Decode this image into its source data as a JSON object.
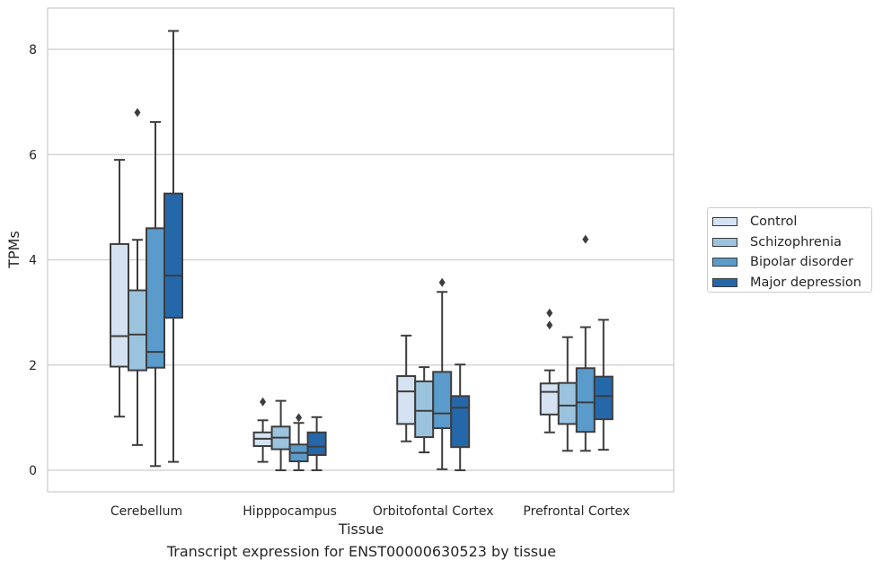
{
  "chart_data": {
    "type": "box",
    "title": "",
    "caption": "Transcript expression for ENST00000630523 by tissue",
    "xlabel": "Tissue",
    "ylabel": "TPMs",
    "ylim": [
      -0.4,
      8.8
    ],
    "yticks": [
      0,
      2,
      4,
      6,
      8
    ],
    "grid": true,
    "legend_position": "right",
    "categories": [
      "Cerebellum",
      "Hipppocampus",
      "Orbitofontal Cortex",
      "Prefrontal Cortex"
    ],
    "series": [
      {
        "name": "Control",
        "color": "#d4e2f1",
        "boxes": [
          {
            "whisker_low": 1.02,
            "q1": 1.97,
            "median": 2.55,
            "q3": 4.3,
            "whisker_high": 5.9,
            "outliers": []
          },
          {
            "whisker_low": 0.16,
            "q1": 0.46,
            "median": 0.6,
            "q3": 0.72,
            "whisker_high": 0.95,
            "outliers": [
              1.3
            ]
          },
          {
            "whisker_low": 0.55,
            "q1": 0.88,
            "median": 1.5,
            "q3": 1.79,
            "whisker_high": 2.56,
            "outliers": []
          },
          {
            "whisker_low": 0.72,
            "q1": 1.06,
            "median": 1.49,
            "q3": 1.65,
            "whisker_high": 1.9,
            "outliers": [
              2.76,
              2.99
            ]
          }
        ]
      },
      {
        "name": "Schizophrenia",
        "color": "#9cc3de",
        "boxes": [
          {
            "whisker_low": 0.48,
            "q1": 1.9,
            "median": 2.58,
            "q3": 3.42,
            "whisker_high": 4.38,
            "outliers": [
              6.8
            ]
          },
          {
            "whisker_low": 0.0,
            "q1": 0.4,
            "median": 0.62,
            "q3": 0.83,
            "whisker_high": 1.32,
            "outliers": []
          },
          {
            "whisker_low": 0.34,
            "q1": 0.63,
            "median": 1.13,
            "q3": 1.69,
            "whisker_high": 1.96,
            "outliers": []
          },
          {
            "whisker_low": 0.37,
            "q1": 0.88,
            "median": 1.23,
            "q3": 1.66,
            "whisker_high": 2.53,
            "outliers": []
          }
        ]
      },
      {
        "name": "Bipolar disorder",
        "color": "#5a9bcb",
        "boxes": [
          {
            "whisker_low": 0.08,
            "q1": 1.95,
            "median": 2.25,
            "q3": 4.6,
            "whisker_high": 6.62,
            "outliers": []
          },
          {
            "whisker_low": 0.0,
            "q1": 0.17,
            "median": 0.33,
            "q3": 0.49,
            "whisker_high": 0.9,
            "outliers": [
              1.0
            ]
          },
          {
            "whisker_low": 0.02,
            "q1": 0.8,
            "median": 1.08,
            "q3": 1.87,
            "whisker_high": 3.39,
            "outliers": [
              3.57
            ]
          },
          {
            "whisker_low": 0.37,
            "q1": 0.73,
            "median": 1.29,
            "q3": 1.94,
            "whisker_high": 2.72,
            "outliers": [
              4.39
            ]
          }
        ]
      },
      {
        "name": "Major depression",
        "color": "#2568aa",
        "boxes": [
          {
            "whisker_low": 0.16,
            "q1": 2.9,
            "median": 3.7,
            "q3": 5.26,
            "whisker_high": 8.35,
            "outliers": []
          },
          {
            "whisker_low": 0.0,
            "q1": 0.29,
            "median": 0.45,
            "q3": 0.72,
            "whisker_high": 1.01,
            "outliers": []
          },
          {
            "whisker_low": 0.0,
            "q1": 0.44,
            "median": 1.19,
            "q3": 1.41,
            "whisker_high": 2.01,
            "outliers": []
          },
          {
            "whisker_low": 0.39,
            "q1": 0.97,
            "median": 1.41,
            "q3": 1.78,
            "whisker_high": 2.86,
            "outliers": []
          }
        ]
      }
    ]
  }
}
